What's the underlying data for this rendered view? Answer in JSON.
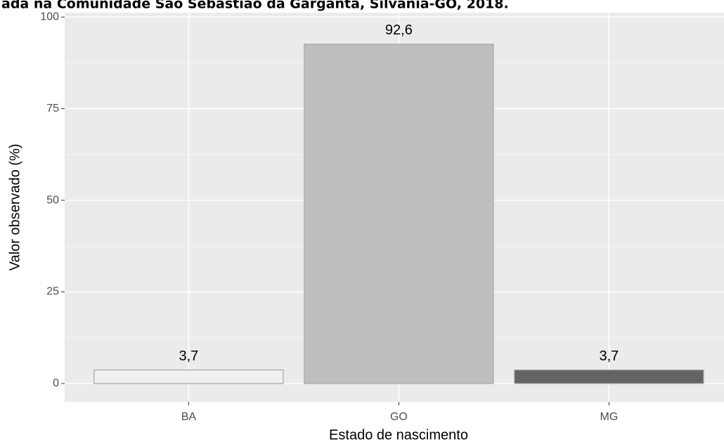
{
  "chart_data": {
    "type": "bar",
    "title": "ada na Comunidade São Sebastião da Garganta, Silvânia-GO, 2018.",
    "x_label": "Estado de nascimento",
    "y_label": "Valor observado (%)",
    "categories": [
      "BA",
      "GO",
      "MG"
    ],
    "values": [
      3.7,
      92.6,
      3.7
    ],
    "value_labels": [
      "3,7",
      "92,6",
      "3,7"
    ],
    "colors": [
      "#f0f0f0",
      "#bebebe",
      "#636363"
    ],
    "ylim": [
      -5,
      101.2
    ],
    "yticks": [
      0,
      25,
      50,
      75,
      100
    ],
    "grid": true
  }
}
